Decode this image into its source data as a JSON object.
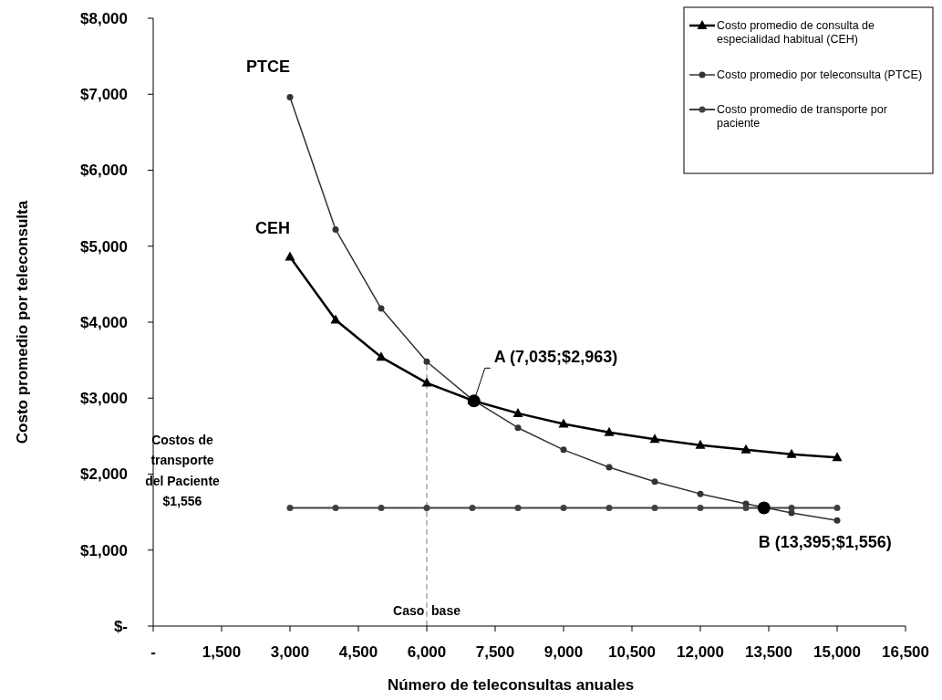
{
  "chart_data": {
    "type": "line",
    "xlabel": "Número de teleconsultas anuales",
    "ylabel": "Costo promedio por teleconsulta",
    "x": [
      3000,
      4000,
      5000,
      6000,
      7000,
      8000,
      9000,
      10000,
      11000,
      12000,
      13000,
      14000,
      15000
    ],
    "series": [
      {
        "name": "Costo promedio de consulta de especialidad habitual (CEH)",
        "color": "#000000",
        "marker": "triangle",
        "values": [
          4860,
          4030,
          3540,
          3200,
          2970,
          2800,
          2660,
          2550,
          2460,
          2380,
          2320,
          2260,
          2220
        ]
      },
      {
        "name": "Costo promedio por teleconsulta (PTCE)",
        "color": "#333333",
        "marker": "circle",
        "values": [
          6960,
          5220,
          4180,
          3480,
          2980,
          2610,
          2320,
          2090,
          1900,
          1740,
          1610,
          1490,
          1390
        ]
      },
      {
        "name": "Costo promedio de transporte por paciente",
        "color": "#404040",
        "marker": "circle",
        "values": [
          1556,
          1556,
          1556,
          1556,
          1556,
          1556,
          1556,
          1556,
          1556,
          1556,
          1556,
          1556,
          1556
        ]
      },
      {
        "type": "scatter",
        "x": [
          7035,
          13395
        ],
        "color": "#000000",
        "marker": "circle",
        "values": [
          2963,
          1556
        ]
      }
    ],
    "xlim": [
      0,
      16500
    ],
    "xticks": [
      {
        "value": 0,
        "label": "-"
      },
      {
        "value": 1500,
        "label": "1,500"
      },
      {
        "value": 3000,
        "label": "3,000"
      },
      {
        "value": 4500,
        "label": "4,500"
      },
      {
        "value": 6000,
        "label": "6,000"
      },
      {
        "value": 7500,
        "label": "7,500"
      },
      {
        "value": 9000,
        "label": "9,000"
      },
      {
        "value": 10500,
        "label": "10,500"
      },
      {
        "value": 12000,
        "label": "12,000"
      },
      {
        "value": 13500,
        "label": "13,500"
      },
      {
        "value": 15000,
        "label": "15,000"
      },
      {
        "value": 16500,
        "label": "16,500"
      }
    ],
    "ylim": [
      0,
      8000
    ],
    "yticks": [
      {
        "value": 0,
        "label": "$-"
      },
      {
        "value": 1000,
        "label": "$1,000"
      },
      {
        "value": 2000,
        "label": "$2,000"
      },
      {
        "value": 3000,
        "label": "$3,000"
      },
      {
        "value": 4000,
        "label": "$4,000"
      },
      {
        "value": 5000,
        "label": "$5,000"
      },
      {
        "value": 6000,
        "label": "$6,000"
      },
      {
        "value": 7000,
        "label": "$7,000"
      },
      {
        "value": 8000,
        "label": "$8,000"
      }
    ],
    "ref_lines": [
      {
        "axis": "x",
        "value": 6000,
        "label": "Caso  base",
        "color": "#a6a6a6",
        "line_style": "dashed"
      }
    ],
    "annotations": [
      {
        "text": "PTCE",
        "x": 3000,
        "y": 6960
      },
      {
        "text": "CEH",
        "x": 3000,
        "y": 4860
      },
      "Costos de\ntransporte\ndel Paciente\n$1,556",
      {
        "text": "A (7,035;$2,963)",
        "x": 7035,
        "y": 2963
      },
      {
        "text": "B (13,395;$1,556)",
        "x": 13395,
        "y": 1556
      }
    ],
    "grid": false,
    "legend": "top right",
    "line_style": "solid"
  }
}
